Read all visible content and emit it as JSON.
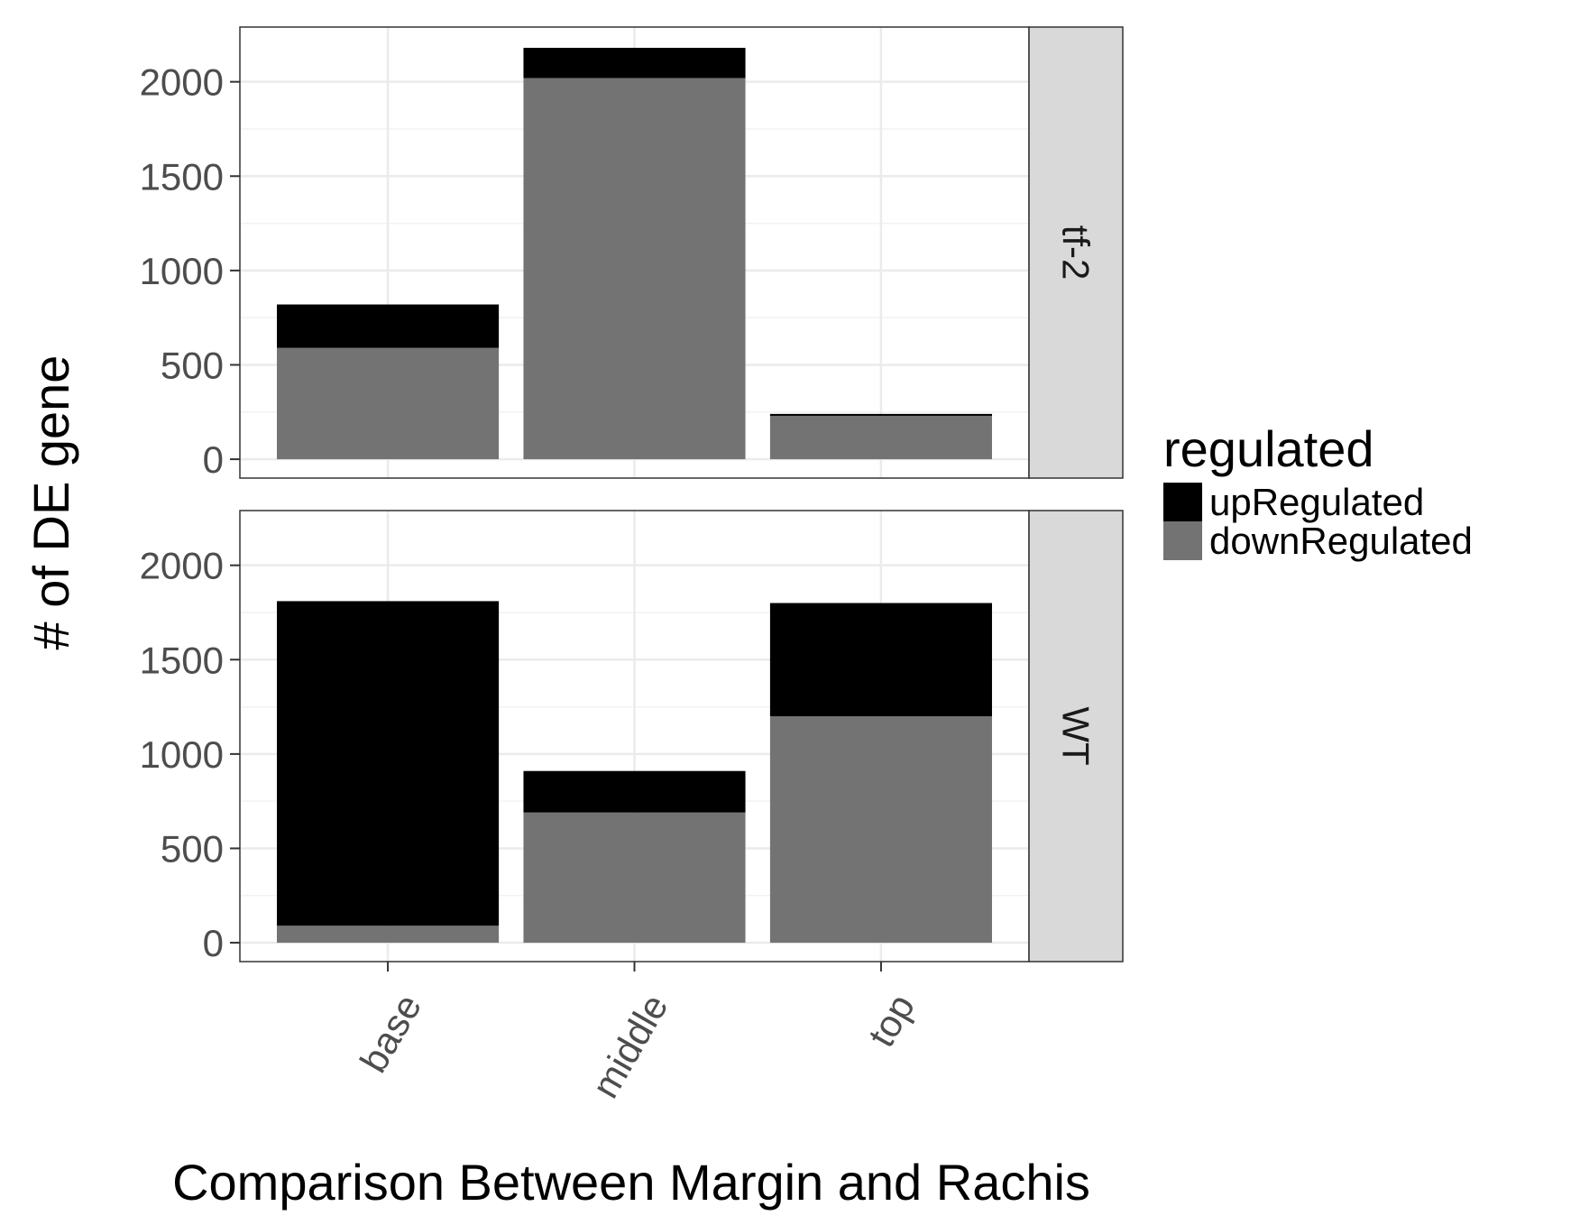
{
  "chart_data": {
    "type": "bar",
    "stacked": true,
    "faceted": true,
    "xlabel": "Comparison Between Margin and Rachis",
    "ylabel": "# of DE gene",
    "categories": [
      "base",
      "middle",
      "top"
    ],
    "yticks": [
      0,
      500,
      1000,
      1500,
      2000
    ],
    "ylim": [
      -100,
      2290
    ],
    "grid": true,
    "legend": {
      "title": "regulated",
      "position": "right",
      "items": [
        {
          "name": "upRegulated",
          "color": "#000000"
        },
        {
          "name": "downRegulated",
          "color": "#737373"
        }
      ]
    },
    "panels": [
      {
        "name": "tf-2",
        "series": [
          {
            "name": "downRegulated",
            "values": [
              590,
              2020,
              230
            ]
          },
          {
            "name": "upRegulated",
            "values": [
              230,
              160,
              10
            ]
          }
        ]
      },
      {
        "name": "WT",
        "series": [
          {
            "name": "downRegulated",
            "values": [
              90,
              690,
              1200
            ]
          },
          {
            "name": "upRegulated",
            "values": [
              1720,
              220,
              600
            ]
          }
        ]
      }
    ]
  }
}
